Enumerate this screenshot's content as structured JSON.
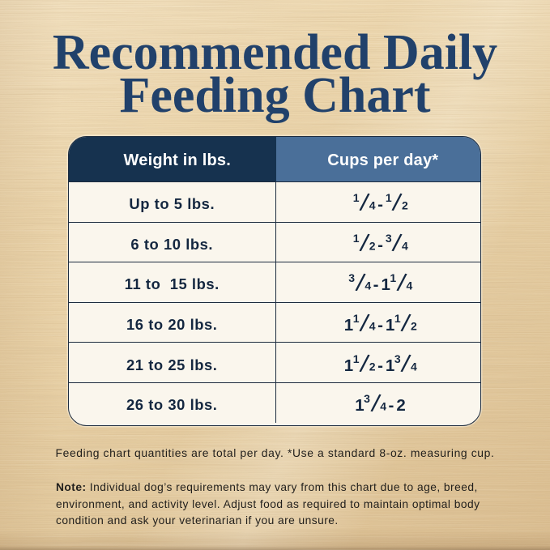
{
  "title": {
    "line1": "Recommended Daily",
    "line2": "Feeding Chart"
  },
  "table": {
    "headers": [
      "Weight in lbs.",
      "Cups per day*"
    ],
    "rows": [
      {
        "weight": "Up to 5 lbs.",
        "cups": "1/4 - 1/2"
      },
      {
        "weight": "6 to 10 lbs.",
        "cups": "1/2 - 3/4"
      },
      {
        "weight": "11 to  15 lbs.",
        "cups": "3/4 - 1 1/4"
      },
      {
        "weight": "16 to 20 lbs.",
        "cups": "1 1/4 - 1 1/2"
      },
      {
        "weight": "21 to 25 lbs.",
        "cups": "1 1/2 - 1 3/4"
      },
      {
        "weight": "26 to 30 lbs.",
        "cups": "1 3/4 - 2"
      }
    ]
  },
  "footer": {
    "caption": "Feeding chart quantities are total per day. *Use a standard 8-oz. measuring cup."
  },
  "note": {
    "label": "Note:",
    "line1": " Individual dog’s requirements may vary from this chart due to age, breed,",
    "line2": "environment, and activity level. Adjust food as required to maintain optimal body",
    "line3": "condition and ask your veterinarian if you are unsure."
  },
  "colors": {
    "title_navy": "#1e3c63",
    "header_left_bg": "#16324f",
    "header_right_bg": "#4a6f99",
    "row_bg": "#faf6ed",
    "table_border": "#1d2c3f",
    "cell_text": "#142740",
    "footer_text": "#211f1c",
    "wood_base": "#e8d2a8"
  },
  "chart_data": {
    "type": "table",
    "title": "Recommended Daily Feeding Chart",
    "columns": [
      "Weight in lbs.",
      "Cups per day*"
    ],
    "rows": [
      [
        "Up to 5 lbs.",
        "1/4 - 1/2"
      ],
      [
        "6 to 10 lbs.",
        "1/2 - 3/4"
      ],
      [
        "11 to  15 lbs.",
        "3/4 - 1 1/4"
      ],
      [
        "16 to 20 lbs.",
        "1 1/4 - 1 1/2"
      ],
      [
        "21 to 25 lbs.",
        "1 1/2 - 1 3/4"
      ],
      [
        "26 to 30 lbs.",
        "1 3/4 - 2"
      ]
    ],
    "notes": [
      "Feeding chart quantities are total per day. *Use a standard 8-oz. measuring cup.",
      "Note: Individual dog’s requirements may vary from this chart due to age, breed, environment, and activity level. Adjust food as required to maintain optimal body condition and ask your veterinarian if you are unsure."
    ]
  }
}
